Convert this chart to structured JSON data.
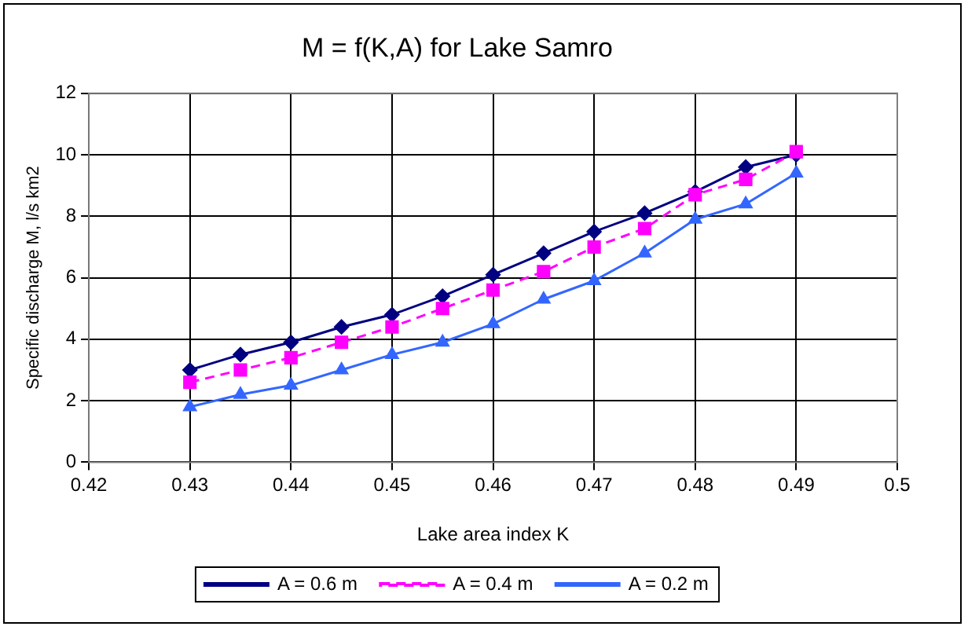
{
  "chart_data": {
    "type": "line",
    "title": "M = f(K,A) for Lake Samro",
    "xlabel": "Lake area index K",
    "ylabel": "Specific discharge M, l/s km2",
    "x": [
      0.43,
      0.435,
      0.44,
      0.445,
      0.45,
      0.455,
      0.46,
      0.465,
      0.47,
      0.475,
      0.48,
      0.485,
      0.49
    ],
    "series": [
      {
        "name": "A = 0.6 m",
        "color": "#000080",
        "marker": "diamond",
        "line_style": "solid",
        "values": [
          3.0,
          3.5,
          3.9,
          4.4,
          4.8,
          5.4,
          6.1,
          6.8,
          7.5,
          8.1,
          8.8,
          9.6,
          10.0
        ]
      },
      {
        "name": "A = 0.4 m",
        "color": "#ff00ff",
        "marker": "square",
        "line_style": "dashed",
        "values": [
          2.6,
          3.0,
          3.4,
          3.9,
          4.4,
          5.0,
          5.6,
          6.2,
          7.0,
          7.6,
          8.7,
          9.2,
          10.1
        ]
      },
      {
        "name": "A = 0.2 m",
        "color": "#3366ff",
        "marker": "triangle",
        "line_style": "solid",
        "values": [
          1.8,
          2.2,
          2.5,
          3.0,
          3.5,
          3.9,
          4.5,
          5.3,
          5.9,
          6.8,
          7.9,
          8.4,
          9.4
        ]
      }
    ],
    "xlim": [
      0.42,
      0.5
    ],
    "xticks": [
      0.42,
      0.43,
      0.44,
      0.45,
      0.46,
      0.47,
      0.48,
      0.49,
      0.5
    ],
    "ylim": [
      0,
      12
    ],
    "yticks": [
      0,
      2,
      4,
      6,
      8,
      10,
      12
    ],
    "grid": true,
    "legend": "bottom"
  }
}
